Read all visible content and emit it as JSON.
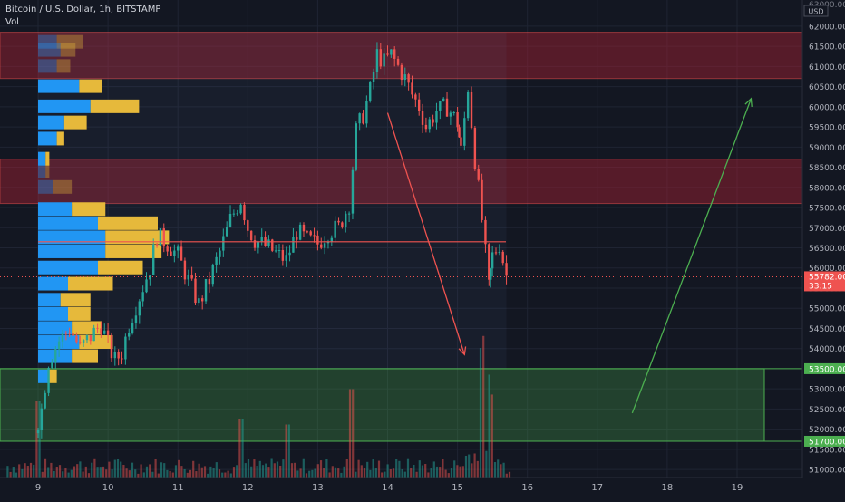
{
  "header": {
    "symbol": "Bitcoin / U.S. Dollar",
    "interval": "1h",
    "exchange": "BITSTAMP",
    "volume_label": "Vol",
    "currency": "USD"
  },
  "colors": {
    "background": "#131722",
    "up": "#26a69a",
    "down": "#ef5350",
    "resistance_zone": "rgba(178,34,52,0.42)",
    "support_zone": "rgba(76,175,80,0.28)",
    "vp_up": "#2196f3",
    "vp_down": "#e6b93b",
    "current_price_label": "#ef5350",
    "support_label": "#4caf50"
  },
  "chart_data": {
    "type": "candlestick",
    "x_ticks": [
      "9",
      "10",
      "11",
      "12",
      "13",
      "14",
      "15",
      "16",
      "17",
      "18",
      "19"
    ],
    "y_ticks": [
      "62000.00",
      "61500.00",
      "61000.00",
      "60500.00",
      "60000.00",
      "59500.00",
      "59000.00",
      "58500.00",
      "58000.00",
      "57500.00",
      "57000.00",
      "56500.00",
      "56000.00",
      "55500.00",
      "55000.00",
      "54500.00",
      "54000.00",
      "53500.00",
      "53000.00",
      "52500.00",
      "52000.00",
      "51500.00",
      "51000.00"
    ],
    "y_top_partial": "63000.00",
    "ylim": [
      50800,
      62650
    ],
    "current_price": {
      "label": "55782.00",
      "countdown": "33:15",
      "value": 55782
    },
    "support_labels": [
      {
        "label": "53500.00",
        "value": 53500
      },
      {
        "label": "51700.00",
        "value": 51700
      }
    ],
    "zones": [
      {
        "name": "resistance-upper",
        "from": 60700,
        "to": 61850
      },
      {
        "name": "resistance-lower",
        "from": 57600,
        "to": 58700
      },
      {
        "name": "support",
        "from": 51700,
        "to": 53500
      }
    ],
    "poc_line": 56650,
    "arrows": [
      {
        "name": "down-arrow",
        "from": {
          "x": 14.0,
          "y": 59850
        },
        "to": {
          "x": 15.1,
          "y": 53850
        }
      },
      {
        "name": "up-arrow",
        "from": {
          "x": 17.5,
          "y": 52400
        },
        "to": {
          "x": 19.2,
          "y": 60200
        }
      }
    ],
    "volume_profile": [
      {
        "price": 61600,
        "up": 0.25,
        "down": 0.35
      },
      {
        "price": 61400,
        "up": 0.3,
        "down": 0.2
      },
      {
        "price": 61000,
        "up": 0.25,
        "down": 0.18
      },
      {
        "price": 60500,
        "up": 0.55,
        "down": 0.3
      },
      {
        "price": 60000,
        "up": 0.7,
        "down": 0.65
      },
      {
        "price": 59600,
        "up": 0.35,
        "down": 0.3
      },
      {
        "price": 59200,
        "up": 0.25,
        "down": 0.1
      },
      {
        "price": 58700,
        "up": 0.1,
        "down": 0.05
      },
      {
        "price": 58400,
        "up": 0.1,
        "down": 0.05
      },
      {
        "price": 58000,
        "up": 0.2,
        "down": 0.25
      },
      {
        "price": 57450,
        "up": 0.45,
        "down": 0.45
      },
      {
        "price": 57100,
        "up": 0.8,
        "down": 0.8
      },
      {
        "price": 56750,
        "up": 0.9,
        "down": 0.85
      },
      {
        "price": 56400,
        "up": 0.9,
        "down": 0.75
      },
      {
        "price": 56000,
        "up": 0.8,
        "down": 0.6
      },
      {
        "price": 55600,
        "up": 0.4,
        "down": 0.6
      },
      {
        "price": 55200,
        "up": 0.3,
        "down": 0.4
      },
      {
        "price": 54850,
        "up": 0.4,
        "down": 0.3
      },
      {
        "price": 54500,
        "up": 0.45,
        "down": 0.4
      },
      {
        "price": 54150,
        "up": 0.55,
        "down": 0.45
      },
      {
        "price": 53800,
        "up": 0.45,
        "down": 0.35
      },
      {
        "price": 53300,
        "up": 0.15,
        "down": 0.1
      }
    ],
    "price_path": [
      [
        8.95,
        51900
      ],
      [
        9.05,
        52500
      ],
      [
        9.15,
        53700
      ],
      [
        9.3,
        54200
      ],
      [
        9.45,
        54500
      ],
      [
        9.6,
        54000
      ],
      [
        9.75,
        54300
      ],
      [
        9.9,
        54600
      ],
      [
        10.0,
        54100
      ],
      [
        10.1,
        53700
      ],
      [
        10.2,
        53900
      ],
      [
        10.3,
        54600
      ],
      [
        10.45,
        55300
      ],
      [
        10.6,
        56000
      ],
      [
        10.7,
        56800
      ],
      [
        10.85,
        56600
      ],
      [
        11.0,
        56300
      ],
      [
        11.1,
        55900
      ],
      [
        11.2,
        55500
      ],
      [
        11.3,
        55100
      ],
      [
        11.45,
        55700
      ],
      [
        11.6,
        56400
      ],
      [
        11.75,
        57200
      ],
      [
        11.9,
        57700
      ],
      [
        12.0,
        57000
      ],
      [
        12.1,
        56700
      ],
      [
        12.2,
        56600
      ],
      [
        12.3,
        56500
      ],
      [
        12.45,
        56300
      ],
      [
        12.55,
        56200
      ],
      [
        12.7,
        56900
      ],
      [
        12.85,
        56700
      ],
      [
        13.0,
        56600
      ],
      [
        13.15,
        56900
      ],
      [
        13.3,
        57000
      ],
      [
        13.45,
        57600
      ],
      [
        13.55,
        59400
      ],
      [
        13.65,
        59800
      ],
      [
        13.75,
        60400
      ],
      [
        13.85,
        61300
      ],
      [
        13.95,
        61100
      ],
      [
        14.05,
        61300
      ],
      [
        14.15,
        61000
      ],
      [
        14.25,
        60700
      ],
      [
        14.35,
        60300
      ],
      [
        14.45,
        60000
      ],
      [
        14.55,
        59500
      ],
      [
        14.7,
        59900
      ],
      [
        14.85,
        60000
      ],
      [
        15.0,
        59600
      ],
      [
        15.05,
        58900
      ],
      [
        15.15,
        60500
      ],
      [
        15.25,
        58700
      ],
      [
        15.35,
        57200
      ],
      [
        15.45,
        55500
      ],
      [
        15.5,
        56300
      ],
      [
        15.6,
        56600
      ],
      [
        15.7,
        55800
      ]
    ],
    "volume_spikes": [
      {
        "x": 9.0,
        "height": 0.65
      },
      {
        "x": 13.45,
        "height": 0.75
      },
      {
        "x": 15.35,
        "height": 1.0
      },
      {
        "x": 15.45,
        "height": 0.7
      },
      {
        "x": 11.9,
        "height": 0.5
      },
      {
        "x": 12.55,
        "height": 0.45
      }
    ]
  }
}
